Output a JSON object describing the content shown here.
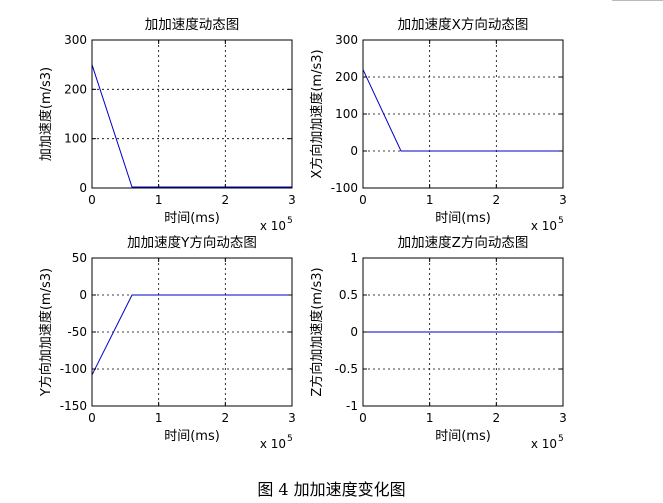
{
  "caption": "图 4  加加速度变化图",
  "chart_data": [
    {
      "type": "line",
      "title": "加加速度动态图",
      "xlabel": "时间(ms)",
      "ylabel": "加加速度(m/s3)",
      "x_multiplier": "x 10",
      "x_exponent": "5",
      "xlim": [
        0,
        3
      ],
      "ylim": [
        0,
        300
      ],
      "xticks": [
        "0",
        "1",
        "2",
        "3"
      ],
      "yticks": [
        "0",
        "100",
        "200",
        "300"
      ],
      "grid": true,
      "series": [
        {
          "color": "#0000c8",
          "x": [
            0,
            0.6,
            3
          ],
          "y": [
            250,
            2,
            2
          ]
        }
      ]
    },
    {
      "type": "line",
      "title": "加加速度X方向动态图",
      "xlabel": "时间(ms)",
      "ylabel": "X方向加加速度(m/s3)",
      "x_multiplier": "x 10",
      "x_exponent": "5",
      "xlim": [
        0,
        3
      ],
      "ylim": [
        -100,
        300
      ],
      "xticks": [
        "0",
        "1",
        "2",
        "3"
      ],
      "yticks": [
        "-100",
        "0",
        "100",
        "200",
        "300"
      ],
      "grid": true,
      "series": [
        {
          "color": "#0000c8",
          "x": [
            0,
            0.57,
            3
          ],
          "y": [
            220,
            0,
            0
          ]
        }
      ]
    },
    {
      "type": "line",
      "title": "加加速度Y方向动态图",
      "xlabel": "时间(ms)",
      "ylabel": "Y方向加加速度(m/s3)",
      "x_multiplier": "x 10",
      "x_exponent": "5",
      "xlim": [
        0,
        3
      ],
      "ylim": [
        -150,
        50
      ],
      "xticks": [
        "0",
        "1",
        "2",
        "3"
      ],
      "yticks": [
        "-150",
        "-100",
        "-50",
        "0",
        "50"
      ],
      "grid": true,
      "series": [
        {
          "color": "#0000c8",
          "x": [
            0,
            0.6,
            3
          ],
          "y": [
            -108,
            0,
            0
          ]
        }
      ]
    },
    {
      "type": "line",
      "title": "加加速度Z方向动态图",
      "xlabel": "时间(ms)",
      "ylabel": "Z方向加加速度(m/s3)",
      "x_multiplier": "x 10",
      "x_exponent": "5",
      "xlim": [
        0,
        3
      ],
      "ylim": [
        -1,
        1
      ],
      "xticks": [
        "0",
        "1",
        "2",
        "3"
      ],
      "yticks": [
        "-1",
        "-0.5",
        "0",
        "0.5",
        "1"
      ],
      "grid": true,
      "series": [
        {
          "color": "#0000c8",
          "x": [
            0,
            3
          ],
          "y": [
            0,
            0
          ]
        }
      ]
    }
  ]
}
